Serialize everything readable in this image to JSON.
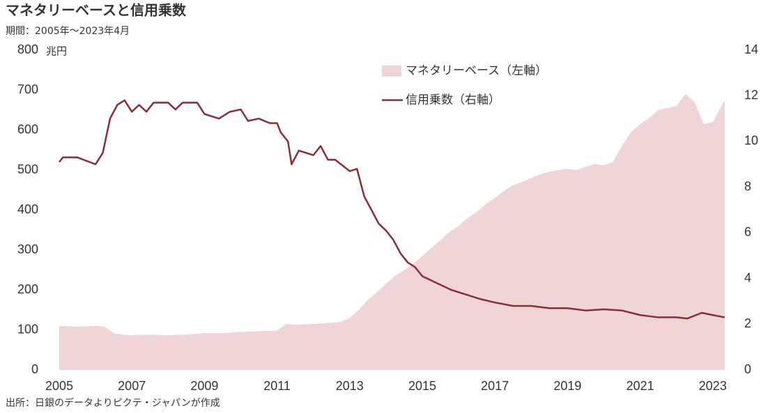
{
  "chart_data": {
    "type": "area-line",
    "title": "マネタリーベースと信用乗数",
    "subtitle": "期間：2005年～2023年4月",
    "y_unit": "兆円",
    "source": "出所：日銀のデータよりピクテ・ジャパンが作成",
    "legend": "top-right",
    "xlim": [
      2005,
      2023.33
    ],
    "xticks": [
      2005,
      2007,
      2009,
      2011,
      2013,
      2015,
      2017,
      2019,
      2021,
      2023
    ],
    "ylim": [
      0,
      800
    ],
    "yticks": [
      0,
      100,
      200,
      300,
      400,
      500,
      600,
      700,
      800
    ],
    "y2lim": [
      0,
      14
    ],
    "y2ticks": [
      0,
      2,
      4,
      6,
      8,
      10,
      12,
      14
    ],
    "series": [
      {
        "name": "マネタリーベース（左軸）",
        "type": "area",
        "color": "#efd5d6",
        "x": [
          2005,
          2005.5,
          2006,
          2006.25,
          2006.5,
          2006.75,
          2007,
          2007.5,
          2008,
          2008.5,
          2009,
          2009.5,
          2010,
          2010.5,
          2011,
          2011.25,
          2011.5,
          2012,
          2012.5,
          2012.75,
          2013,
          2013.25,
          2013.5,
          2013.75,
          2014,
          2014.25,
          2014.5,
          2014.75,
          2015,
          2015.25,
          2015.5,
          2015.75,
          2016,
          2016.25,
          2016.5,
          2016.75,
          2017,
          2017.25,
          2017.5,
          2017.75,
          2018,
          2018.25,
          2018.5,
          2018.75,
          2019,
          2019.25,
          2019.5,
          2019.75,
          2020,
          2020.25,
          2020.5,
          2020.75,
          2021,
          2021.25,
          2021.5,
          2021.75,
          2022,
          2022.25,
          2022.5,
          2022.75,
          2023,
          2023.33
        ],
        "values": [
          110,
          108,
          110,
          108,
          92,
          88,
          87,
          88,
          87,
          88,
          92,
          92,
          95,
          97,
          98,
          115,
          113,
          115,
          118,
          120,
          130,
          150,
          175,
          195,
          215,
          235,
          250,
          265,
          285,
          305,
          325,
          345,
          360,
          380,
          395,
          415,
          430,
          448,
          462,
          470,
          480,
          490,
          495,
          500,
          503,
          500,
          508,
          515,
          512,
          520,
          560,
          595,
          615,
          630,
          650,
          655,
          660,
          690,
          670,
          615,
          620,
          675
        ]
      },
      {
        "name": "信用乗数（右軸）",
        "type": "line",
        "axis": "y2",
        "color": "#8b2e34",
        "x": [
          2005,
          2005.1,
          2005.5,
          2006,
          2006.2,
          2006.4,
          2006.6,
          2006.8,
          2007,
          2007.2,
          2007.4,
          2007.6,
          2008,
          2008.2,
          2008.4,
          2008.8,
          2009,
          2009.4,
          2009.7,
          2010,
          2010.2,
          2010.5,
          2010.8,
          2011,
          2011.1,
          2011.3,
          2011.4,
          2011.6,
          2012,
          2012.2,
          2012.4,
          2012.6,
          2013,
          2013.2,
          2013.4,
          2013.6,
          2013.8,
          2014,
          2014.2,
          2014.4,
          2014.6,
          2014.8,
          2015,
          2015.4,
          2015.8,
          2016.2,
          2016.6,
          2017,
          2017.5,
          2018,
          2018.5,
          2019,
          2019.5,
          2020,
          2020.5,
          2021,
          2021.5,
          2022,
          2022.3,
          2022.7,
          2023,
          2023.33
        ],
        "values": [
          9.1,
          9.3,
          9.3,
          9.0,
          9.5,
          11.0,
          11.6,
          11.8,
          11.3,
          11.6,
          11.3,
          11.7,
          11.7,
          11.4,
          11.7,
          11.7,
          11.2,
          11.0,
          11.3,
          11.4,
          10.9,
          11.0,
          10.8,
          10.8,
          10.4,
          10.0,
          9.0,
          9.6,
          9.4,
          9.8,
          9.2,
          9.2,
          8.7,
          8.8,
          7.6,
          7.0,
          6.4,
          6.1,
          5.7,
          5.1,
          4.7,
          4.5,
          4.1,
          3.8,
          3.5,
          3.3,
          3.1,
          2.95,
          2.8,
          2.8,
          2.7,
          2.7,
          2.6,
          2.65,
          2.6,
          2.4,
          2.3,
          2.3,
          2.25,
          2.5,
          2.4,
          2.3
        ]
      }
    ]
  }
}
